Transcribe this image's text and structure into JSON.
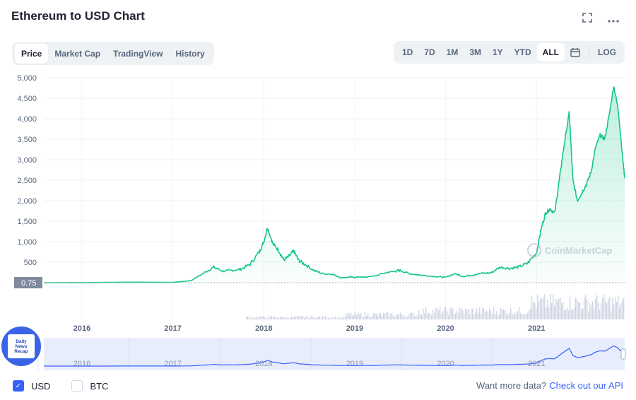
{
  "title": "Ethereum to USD Chart",
  "tabs": [
    {
      "label": "Price",
      "active": true
    },
    {
      "label": "Market Cap",
      "active": false
    },
    {
      "label": "TradingView",
      "active": false
    },
    {
      "label": "History",
      "active": false
    }
  ],
  "ranges": [
    {
      "label": "1D",
      "active": false
    },
    {
      "label": "7D",
      "active": false
    },
    {
      "label": "1M",
      "active": false
    },
    {
      "label": "3M",
      "active": false
    },
    {
      "label": "1Y",
      "active": false
    },
    {
      "label": "YTD",
      "active": false
    },
    {
      "label": "ALL",
      "active": true
    }
  ],
  "log_label": "LOG",
  "watermark": "CoinMarketCap",
  "badge_text": [
    "Daily",
    "News",
    "Recap"
  ],
  "currencies": [
    {
      "label": "USD",
      "checked": true
    },
    {
      "label": "BTC",
      "checked": false
    }
  ],
  "api_text": "Want more data?",
  "api_link": "Check out our API",
  "colors": {
    "price_line": "#16c784",
    "volume": "#cfd6e4",
    "navigator_line": "#3861fb",
    "navigator_bg": "#e8edfd"
  },
  "chart_data": {
    "type": "line",
    "title": "Ethereum to USD Chart",
    "y_ticks": [
      "5,000",
      "4,500",
      "4,000",
      "3,500",
      "3,000",
      "2,500",
      "2,000",
      "1,500",
      "1,000",
      "500"
    ],
    "y_range": [
      0,
      5000
    ],
    "x_ticks": [
      "2016",
      "2017",
      "2018",
      "2019",
      "2020",
      "2021"
    ],
    "x_range": [
      2015.58,
      2021.97
    ],
    "navigator_ticks": [
      "2016",
      "2017",
      "2018",
      "2019",
      "2020",
      "2021"
    ],
    "start_price_label": "0.75",
    "series": [
      {
        "x": [
          2015.58,
          2016.0,
          2016.5,
          2017.0,
          2017.2,
          2017.35,
          2017.45,
          2017.55,
          2017.65,
          2017.75,
          2017.85,
          2017.95,
          2018.0,
          2018.04,
          2018.1,
          2018.16,
          2018.22,
          2018.28,
          2018.33,
          2018.38,
          2018.45,
          2018.55,
          2018.65,
          2018.75,
          2018.85,
          2018.95,
          2019.0,
          2019.2,
          2019.35,
          2019.45,
          2019.5,
          2019.6,
          2019.75,
          2019.9,
          2020.0,
          2020.1,
          2020.2,
          2020.3,
          2020.4,
          2020.5,
          2020.6,
          2020.7,
          2020.8,
          2020.9,
          2021.0,
          2021.05,
          2021.1,
          2021.15,
          2021.2,
          2021.25,
          2021.3,
          2021.36,
          2021.4,
          2021.45,
          2021.5,
          2021.55,
          2021.6,
          2021.65,
          2021.7,
          2021.75,
          2021.8,
          2021.85,
          2021.9,
          2021.95,
          2021.97
        ],
        "values": [
          0.75,
          1,
          12,
          8,
          50,
          250,
          380,
          280,
          300,
          330,
          450,
          750,
          1000,
          1350,
          950,
          800,
          550,
          650,
          780,
          550,
          450,
          300,
          220,
          210,
          120,
          140,
          130,
          150,
          250,
          280,
          300,
          220,
          180,
          150,
          130,
          220,
          150,
          190,
          230,
          240,
          380,
          350,
          380,
          470,
          730,
          1300,
          1700,
          1800,
          1700,
          2500,
          3300,
          4150,
          2500,
          2000,
          2200,
          2400,
          2700,
          3300,
          3600,
          3500,
          4100,
          4800,
          4200,
          3000,
          2550
        ]
      }
    ]
  }
}
